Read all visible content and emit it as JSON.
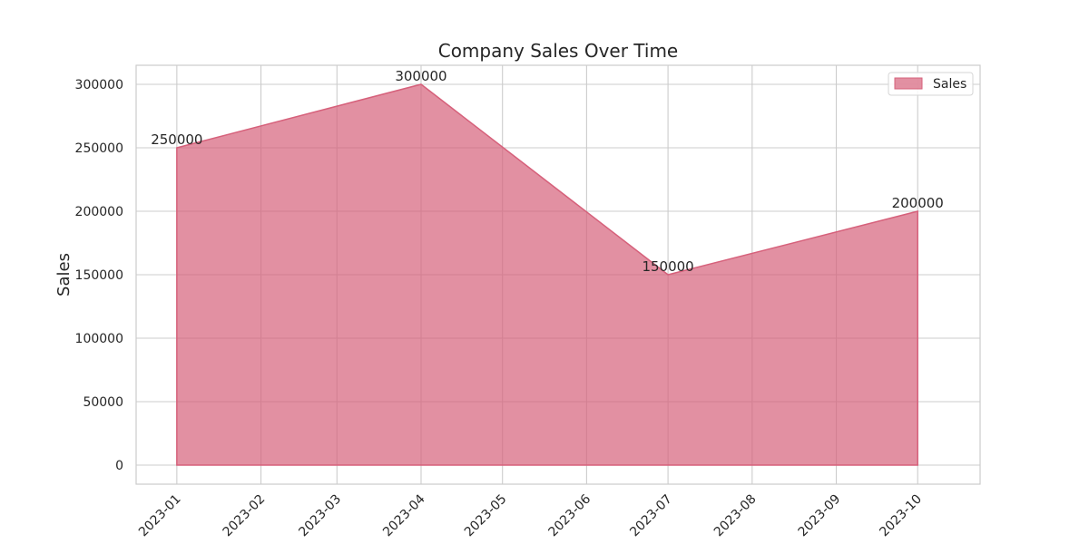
{
  "chart_data": {
    "type": "area",
    "title": "Company Sales Over Time",
    "xlabel": "",
    "ylabel": "Sales",
    "x": [
      "2023-01",
      "2023-04",
      "2023-07",
      "2023-10"
    ],
    "x_ticks": [
      "2023-01",
      "2023-02",
      "2023-03",
      "2023-04",
      "2023-05",
      "2023-06",
      "2023-07",
      "2023-08",
      "2023-09",
      "2023-10"
    ],
    "y_ticks": [
      0,
      50000,
      100000,
      150000,
      200000,
      250000,
      300000
    ],
    "ylim": [
      -15000,
      315000
    ],
    "xlim": [
      "2022-12-17",
      "2023-10-24"
    ],
    "grid": true,
    "legend_position": "top-right",
    "series": [
      {
        "name": "Sales",
        "values": [
          250000,
          300000,
          150000,
          200000
        ],
        "color": "#d6617b"
      }
    ],
    "data_labels": [
      "250000",
      "300000",
      "150000",
      "200000"
    ]
  }
}
